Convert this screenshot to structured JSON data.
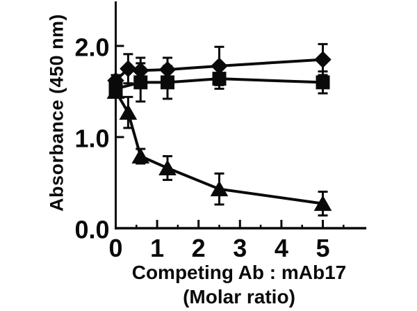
{
  "figure": {
    "background": "#ffffff",
    "ink_color": "#0a0a0a"
  },
  "chart_data": {
    "type": "line",
    "title": "",
    "ylabel": "Absorbance (450 nm)",
    "xlabel_line1": "Competing Ab : mAb17",
    "xlabel_line2": "(Molar ratio)",
    "xlim": [
      0,
      6.05
    ],
    "ylim": [
      0,
      2.49
    ],
    "grid": false,
    "legend": "none",
    "x_major_ticks": [
      0,
      1,
      2,
      3,
      4,
      5
    ],
    "x_tick_labels": [
      "0",
      "1",
      "2",
      "3",
      "4",
      "5"
    ],
    "x_minor_ticks": [
      0.5,
      1.5,
      2.5,
      3.5,
      4.5,
      5.5
    ],
    "y_ticks": [
      0.0,
      1.0,
      2.0
    ],
    "y_tick_labels": [
      "0.0",
      "1.0",
      "2.0"
    ],
    "series": [
      {
        "name": "square-series",
        "marker": "square",
        "x": [
          0,
          0.6,
          1.25,
          2.5,
          5
        ],
        "y": [
          1.53,
          1.6,
          1.6,
          1.64,
          1.6
        ],
        "err": [
          0.06,
          0.21,
          0.18,
          0.11,
          0.12
        ]
      },
      {
        "name": "diamond-series",
        "marker": "diamond",
        "x": [
          0,
          0.3,
          0.6,
          1.25,
          2.5,
          5
        ],
        "y": [
          1.62,
          1.75,
          1.73,
          1.74,
          1.78,
          1.85
        ],
        "err": [
          0.06,
          0.16,
          0.14,
          0.13,
          0.21,
          0.17
        ]
      },
      {
        "name": "triangle-series",
        "marker": "triangle",
        "x": [
          0,
          0.3,
          0.6,
          1.25,
          2.5,
          5
        ],
        "y": [
          1.5,
          1.27,
          0.79,
          0.66,
          0.43,
          0.27
        ],
        "err": [
          0.05,
          0.17,
          0.08,
          0.13,
          0.17,
          0.13
        ]
      }
    ]
  }
}
